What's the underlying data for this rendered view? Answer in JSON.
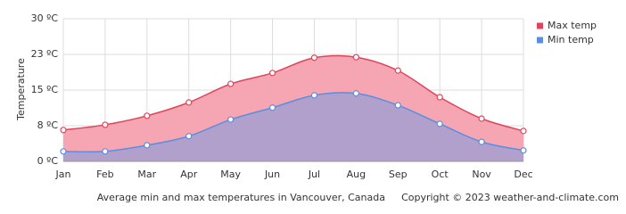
{
  "chart_data": {
    "type": "area",
    "caption": "Average min and max temperatures in Vancouver, Canada",
    "copyright": "Copyright © 2023  weather-and-climate.com",
    "y_label": "Temperature",
    "categories": [
      "Jan",
      "Feb",
      "Mar",
      "Apr",
      "May",
      "Jun",
      "Jul",
      "Aug",
      "Sep",
      "Oct",
      "Nov",
      "Dec"
    ],
    "series": [
      {
        "name": "Max temp",
        "color": "#e0445a",
        "fill": "#f6a6b2",
        "values": [
          6.6,
          7.7,
          9.6,
          12.4,
          16.3,
          18.6,
          21.8,
          21.9,
          19.1,
          13.5,
          9.0,
          6.4
        ]
      },
      {
        "name": "Min temp",
        "color": "#5a8ee0",
        "fill": "#a49fd0",
        "values": [
          2.1,
          2.1,
          3.4,
          5.3,
          8.8,
          11.3,
          13.9,
          14.3,
          11.8,
          7.9,
          4.1,
          2.3
        ]
      }
    ],
    "ylim": [
      0,
      30
    ],
    "yticks": [
      {
        "value": 0,
        "label": "0 ºC"
      },
      {
        "value": 7.5,
        "label": "8 ºC"
      },
      {
        "value": 15,
        "label": "15 ºC"
      },
      {
        "value": 22.5,
        "label": "23 ºC"
      },
      {
        "value": 30,
        "label": "30 ºC"
      }
    ],
    "grid": true,
    "legend": "top-right"
  }
}
